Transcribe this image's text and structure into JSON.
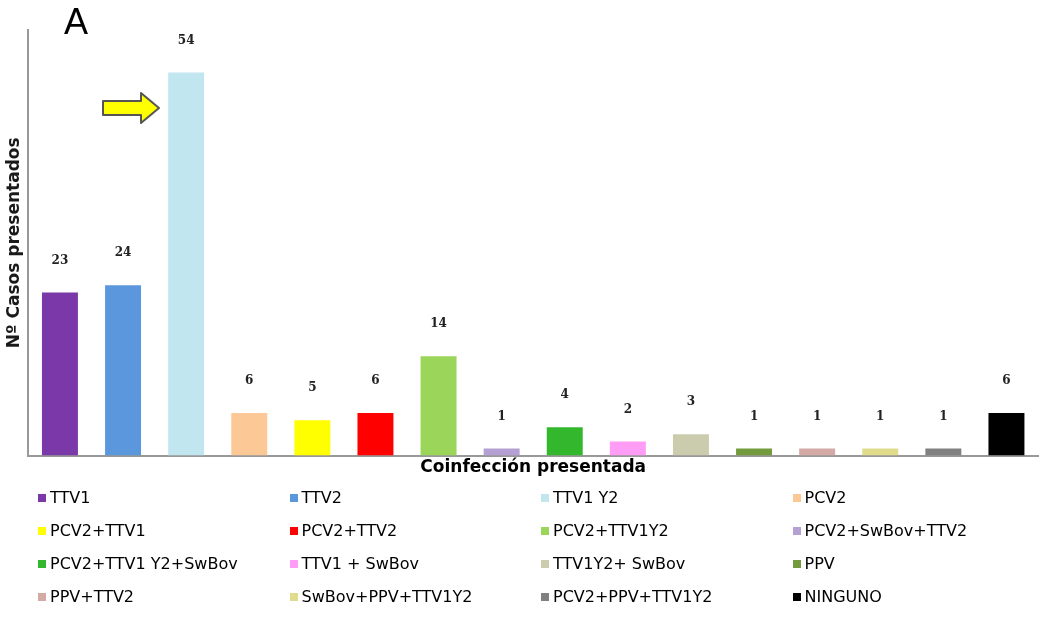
{
  "chart_data": {
    "type": "bar",
    "ylabel": "Nº Casos presentados",
    "xlabel": "Coinfección presentada",
    "annotations": [
      "A"
    ],
    "categories": [
      null,
      null,
      null,
      null,
      null,
      null,
      null,
      null,
      null,
      null,
      null,
      null,
      null,
      null,
      null,
      null
    ],
    "series": [
      {
        "name": "TTV1",
        "color": "#7a38a8",
        "values": [
          23,
          null,
          null,
          null,
          null,
          null,
          null,
          null,
          null,
          null,
          null,
          null,
          null,
          null,
          null,
          null
        ]
      },
      {
        "name": "TTV2",
        "color": "#5b97dc",
        "values": [
          null,
          24,
          null,
          null,
          null,
          null,
          null,
          null,
          null,
          null,
          null,
          null,
          null,
          null,
          null,
          null
        ]
      },
      {
        "name": "TTV1 Y2",
        "color": "#c2e6f0",
        "values": [
          null,
          null,
          54,
          null,
          null,
          null,
          null,
          null,
          null,
          null,
          null,
          null,
          null,
          null,
          null,
          null
        ]
      },
      {
        "name": "PCV2",
        "color": "#fcc896",
        "values": [
          null,
          null,
          null,
          6,
          null,
          null,
          null,
          null,
          null,
          null,
          null,
          null,
          null,
          null,
          null,
          null
        ]
      },
      {
        "name": "PCV2+TTV1",
        "color": "#ffff00",
        "values": [
          null,
          null,
          null,
          null,
          5,
          null,
          null,
          null,
          null,
          null,
          null,
          null,
          null,
          null,
          null,
          null
        ]
      },
      {
        "name": "PCV2+TTV2",
        "color": "#ff0000",
        "values": [
          null,
          null,
          null,
          null,
          null,
          6,
          null,
          null,
          null,
          null,
          null,
          null,
          null,
          null,
          null,
          null
        ]
      },
      {
        "name": "PCV2+TTV1Y2",
        "color": "#9bd65a",
        "values": [
          null,
          null,
          null,
          null,
          null,
          null,
          14,
          null,
          null,
          null,
          null,
          null,
          null,
          null,
          null,
          null
        ]
      },
      {
        "name": "PCV2+SwBov+TTV2",
        "color": "#b4a0d2",
        "values": [
          null,
          null,
          null,
          null,
          null,
          null,
          null,
          1,
          null,
          null,
          null,
          null,
          null,
          null,
          null,
          null
        ]
      },
      {
        "name": "PCV2+TTV1 Y2+SwBov",
        "color": "#33b82d",
        "values": [
          null,
          null,
          null,
          null,
          null,
          null,
          null,
          null,
          4,
          null,
          null,
          null,
          null,
          null,
          null,
          null
        ]
      },
      {
        "name": "TTV1 + SwBov",
        "color": "#ff9cf5",
        "values": [
          null,
          null,
          null,
          null,
          null,
          null,
          null,
          null,
          null,
          2,
          null,
          null,
          null,
          null,
          null,
          null
        ]
      },
      {
        "name": "TTV1Y2+ SwBov",
        "color": "#cbcbae",
        "values": [
          null,
          null,
          null,
          null,
          null,
          null,
          null,
          null,
          null,
          null,
          3,
          null,
          null,
          null,
          null,
          null
        ]
      },
      {
        "name": "PPV",
        "color": "#739a3c",
        "values": [
          null,
          null,
          null,
          null,
          null,
          null,
          null,
          null,
          null,
          null,
          null,
          1,
          null,
          null,
          null,
          null
        ]
      },
      {
        "name": "PPV+TTV2",
        "color": "#d4aaa4",
        "values": [
          null,
          null,
          null,
          null,
          null,
          null,
          null,
          null,
          null,
          null,
          null,
          null,
          1,
          null,
          null,
          null
        ]
      },
      {
        "name": "SwBov+PPV+TTV1Y2",
        "color": "#e0dc8c",
        "values": [
          null,
          null,
          null,
          null,
          null,
          null,
          null,
          null,
          null,
          null,
          null,
          null,
          null,
          1,
          null,
          null
        ]
      },
      {
        "name": "PCV2+PPV+TTV1Y2",
        "color": "#808080",
        "values": [
          null,
          null,
          null,
          null,
          null,
          null,
          null,
          null,
          null,
          null,
          null,
          null,
          null,
          null,
          1,
          null
        ]
      },
      {
        "name": "NINGUNO",
        "color": "#000000",
        "values": [
          null,
          null,
          null,
          null,
          null,
          null,
          null,
          null,
          null,
          null,
          null,
          null,
          null,
          null,
          null,
          6
        ]
      }
    ],
    "stacked": true,
    "ylim": [
      0,
      60
    ],
    "data_labels": true,
    "grid": false,
    "legend": "bottom"
  }
}
